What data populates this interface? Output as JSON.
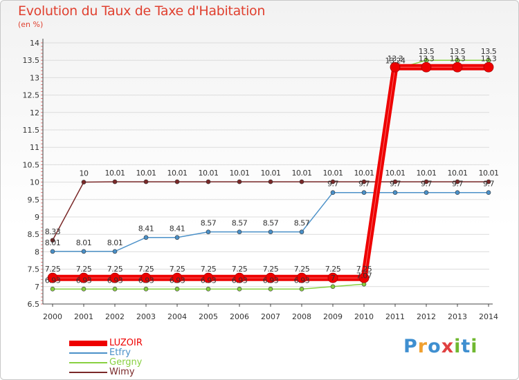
{
  "chart_data": {
    "type": "line",
    "title": "Evolution du Taux de Taxe d'Habitation",
    "subtitle": "(en %)",
    "ylim": [
      6.5,
      14
    ],
    "yticks": [
      "6.5",
      "7",
      "7.5",
      "8",
      "8.5",
      "9",
      "9.5",
      "10",
      "10.5",
      "11",
      "11.5",
      "12",
      "12.5",
      "13",
      "13.5",
      "14"
    ],
    "categories": [
      "2000",
      "2001",
      "2002",
      "2003",
      "2004",
      "2005",
      "2006",
      "2007",
      "2008",
      "2009",
      "2010",
      "2011",
      "2012",
      "2013",
      "2014"
    ],
    "series": [
      {
        "name": "LUZOIR",
        "color": "#ee0000",
        "values": [
          7.25,
          7.25,
          7.25,
          7.25,
          7.25,
          7.25,
          7.25,
          7.25,
          7.25,
          7.25,
          7.25,
          13.3,
          13.3,
          13.3,
          13.3
        ],
        "labels": [
          "7.25",
          "7.25",
          "7.25",
          "7.25",
          "7.25",
          "7.25",
          "7.25",
          "7.25",
          "7.25",
          "7.25",
          "7.25",
          "13.3",
          "13.3",
          "13.3",
          "13.3"
        ]
      },
      {
        "name": "Etfry",
        "color": "#4a90c8",
        "values": [
          8.01,
          8.01,
          8.01,
          8.41,
          8.41,
          8.57,
          8.57,
          8.57,
          8.57,
          9.7,
          9.7,
          9.7,
          9.7,
          9.7,
          9.7
        ],
        "labels": [
          "8.01",
          "8.01",
          "8.01",
          "8.41",
          "8.41",
          "8.57",
          "8.57",
          "8.57",
          "8.57",
          "9.7",
          "9.7",
          "9.7",
          "9.7",
          "9.7",
          "9.7"
        ]
      },
      {
        "name": "Gergny",
        "color": "#88d040",
        "values": [
          6.93,
          6.93,
          6.93,
          6.93,
          6.93,
          6.93,
          6.93,
          6.93,
          6.93,
          7.0,
          7.07,
          13.24,
          13.5,
          13.5,
          13.5
        ],
        "labels": [
          "6.93",
          "6.93",
          "6.93",
          "6.93",
          "6.93",
          "6.93",
          "6.93",
          "6.93",
          "6.93",
          "7",
          "7.07",
          "13.24",
          "13.5",
          "13.5",
          "13.5"
        ]
      },
      {
        "name": "Wimy",
        "color": "#7a2828",
        "values": [
          8.33,
          10,
          10.01,
          10.01,
          10.01,
          10.01,
          10.01,
          10.01,
          10.01,
          10.01,
          10.01,
          10.01,
          10.01,
          10.01,
          10.01
        ],
        "labels": [
          "8.33",
          "10",
          "10.01",
          "10.01",
          "10.01",
          "10.01",
          "10.01",
          "10.01",
          "10.01",
          "10.01",
          "10.01",
          "10.01",
          "10.01",
          "10.01",
          "10.01"
        ]
      }
    ],
    "legend_position": "bottom-left"
  },
  "legend": [
    {
      "name": "LUZOIR",
      "color": "#ee0000"
    },
    {
      "name": "Etfry",
      "color": "#4a90c8"
    },
    {
      "name": "Gergny",
      "color": "#88d040"
    },
    {
      "name": "Wimy",
      "color": "#7a2828"
    }
  ],
  "logo": {
    "letters": [
      "P",
      "r",
      "o",
      "x",
      "i",
      "t",
      "i"
    ],
    "colors": [
      "#3f8fd0",
      "#f0a030",
      "#3f8fd0",
      "#e04040",
      "#70b830",
      "#3f8fd0",
      "#70b830"
    ]
  }
}
